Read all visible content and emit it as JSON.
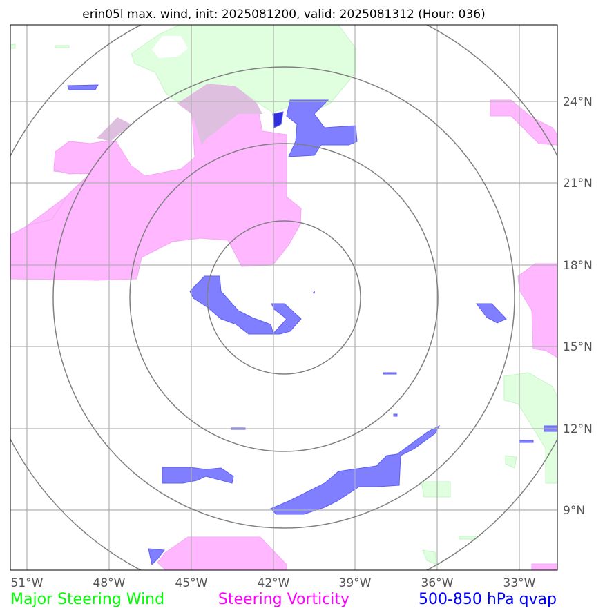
{
  "title": "erin05l max. wind, init: 2025081200, valid: 2025081312 (Hour: 036)",
  "map": {
    "lon_ticks": [
      "51°W",
      "48°W",
      "45°W",
      "42°W",
      "39°W",
      "36°W",
      "33°W"
    ],
    "lat_ticks": [
      "24°N",
      "21°N",
      "18°N",
      "15°N",
      "12°N",
      "9°N"
    ],
    "lon_range": [
      -51.6,
      -31.6
    ],
    "lat_range": [
      6.8,
      26.8
    ],
    "grid": true,
    "range_ring_center": {
      "lon": -41.6,
      "lat": 16.8
    },
    "range_ring_count": 4
  },
  "layers": [
    {
      "name": "Major Steering Wind",
      "color": "#00ff00",
      "fill": "#dfffdf"
    },
    {
      "name": "Steering Vorticity",
      "color": "#ff00ff",
      "fill": "#ffb7ff"
    },
    {
      "name": "500-850 hPa qvap",
      "color": "#0000ff",
      "fill": "#7f7fff"
    }
  ]
}
